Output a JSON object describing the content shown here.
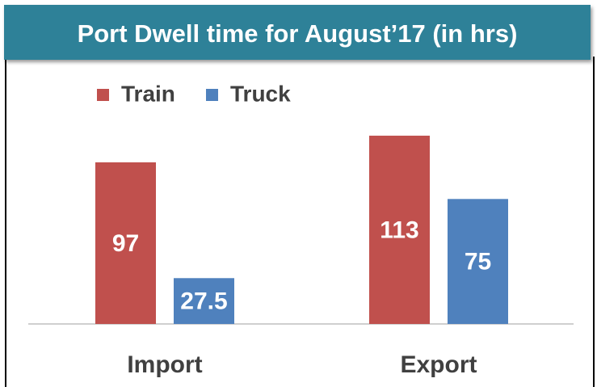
{
  "chart_data": {
    "type": "bar",
    "title": "Port Dwell time for August’17 (in hrs)",
    "categories": [
      "Import",
      "Export"
    ],
    "series": [
      {
        "name": "Train",
        "color": "#c0504d",
        "values": [
          97,
          113
        ]
      },
      {
        "name": "Truck",
        "color": "#4f81bd",
        "values": [
          27.5,
          75
        ]
      }
    ],
    "ylim": [
      0,
      160
    ]
  }
}
